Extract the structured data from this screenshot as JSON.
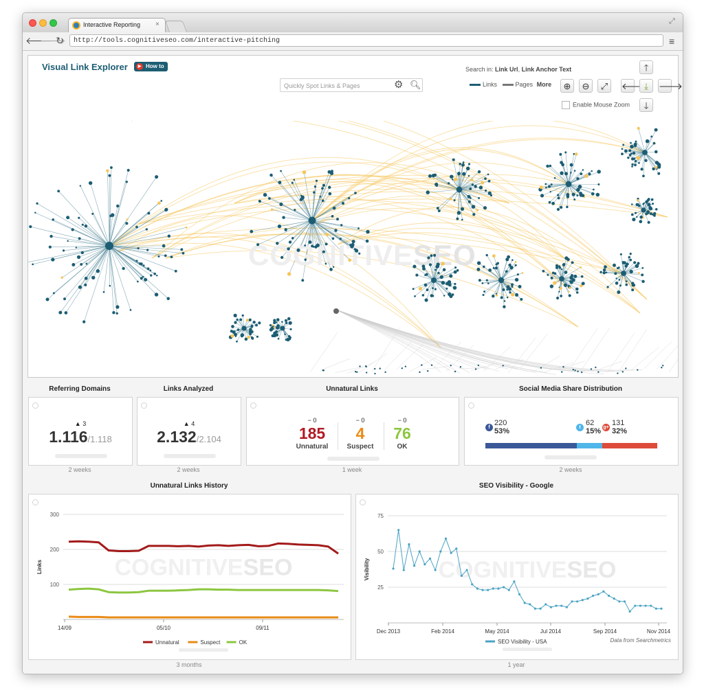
{
  "browser": {
    "tab_title": "Interactive Reporting",
    "url": "http://tools.cognitiveseo.com/interactive-pitching"
  },
  "explorer": {
    "title": "Visual Link Explorer",
    "howto_label": "How to",
    "search_placeholder": "Quickly Spot Links & Pages",
    "search_in_label": "Search in:",
    "search_in_url": "Link Url",
    "search_in_anchor": "Link Anchor Text",
    "legend_links": "Links",
    "legend_pages": "Pages",
    "legend_more": "More",
    "mouse_zoom_label": "Enable Mouse Zoom",
    "watermark_a": "COGNITIVE",
    "watermark_b": "SEO",
    "colors": {
      "links": "#1c5d73",
      "pages": "#777777",
      "yellow_links": "#f6c55a"
    }
  },
  "widgets": {
    "referring_domains": {
      "title": "Referring Domains",
      "delta": "3",
      "value": "1.116",
      "previous": "/1.118",
      "period": "2 weeks"
    },
    "links_analyzed": {
      "title": "Links Analyzed",
      "delta": "4",
      "value": "2.132",
      "previous": "/2.104",
      "period": "2 weeks"
    },
    "unnatural_links": {
      "title": "Unnatural Links",
      "period": "1 week",
      "items": [
        {
          "delta": "0",
          "value": "185",
          "label": "Unnatural",
          "color": "#b11b25"
        },
        {
          "delta": "0",
          "value": "4",
          "label": "Suspect",
          "color": "#e98b16"
        },
        {
          "delta": "0",
          "value": "76",
          "label": "OK",
          "color": "#8cc63f"
        }
      ]
    },
    "social_share": {
      "title": "Social Media Share Distribution",
      "period": "2 weeks",
      "items": [
        {
          "icon": "facebook-icon",
          "count": "220",
          "percent": "53%",
          "share": 53,
          "color": "#3b5998"
        },
        {
          "icon": "twitter-icon",
          "count": "62",
          "percent": "15%",
          "share": 15,
          "color": "#4fb6e8"
        },
        {
          "icon": "google-plus-icon",
          "count": "131",
          "percent": "32%",
          "share": 32,
          "color": "#dd4b39"
        }
      ]
    }
  },
  "chart_data": [
    {
      "type": "line",
      "title": "Unnatural Links History",
      "ylabel": "Links",
      "xlabel": "",
      "ylim": [
        0,
        300
      ],
      "yticks": [
        100,
        200,
        300
      ],
      "x_tick_labels": [
        "14/09",
        "05/10",
        "09/11"
      ],
      "period": "3 months",
      "legend_position": "bottom",
      "watermark_a": "COGNITIVE",
      "watermark_b": "SEO",
      "series": [
        {
          "name": "Unnatural",
          "color": "#a31a1a",
          "values": [
            222,
            223,
            222,
            220,
            197,
            195,
            195,
            196,
            210,
            210,
            210,
            209,
            210,
            208,
            211,
            212,
            210,
            212,
            213,
            209,
            210,
            217,
            216,
            214,
            213,
            212,
            208,
            188
          ]
        },
        {
          "name": "Suspect",
          "color": "#e98b16",
          "values": [
            8,
            7,
            7,
            7,
            6,
            6,
            6,
            6,
            6,
            6,
            6,
            6,
            6,
            6,
            6,
            6,
            6,
            6,
            6,
            6,
            6,
            6,
            6,
            6,
            6,
            6,
            6,
            6
          ]
        },
        {
          "name": "OK",
          "color": "#8cc63f",
          "values": [
            85,
            87,
            88,
            86,
            78,
            77,
            77,
            78,
            82,
            82,
            82,
            83,
            84,
            86,
            86,
            85,
            85,
            84,
            84,
            84,
            84,
            84,
            84,
            84,
            84,
            84,
            83,
            81
          ]
        }
      ]
    },
    {
      "type": "line",
      "title": "SEO Visibility - Google",
      "ylabel": "Visibility",
      "xlabel": "",
      "ylim": [
        0,
        75
      ],
      "yticks": [
        25,
        50,
        75
      ],
      "x_tick_labels": [
        "Dec 2013",
        "Feb 2014",
        "May 2014",
        "Jul 2014",
        "Sep 2014",
        "Nov 2014"
      ],
      "period": "1 year",
      "legend_position": "bottom",
      "note": "Data from Searchmetrics",
      "watermark_a": "COGNITIVE",
      "watermark_b": "SEO",
      "series": [
        {
          "name": "SEO Visibility - USA",
          "color": "#4aa3c4",
          "values": [
            38,
            65,
            37,
            55,
            40,
            50,
            41,
            45,
            37,
            50,
            59,
            49,
            52,
            33,
            37,
            27,
            24,
            23,
            23,
            24,
            24,
            25,
            23,
            29,
            20,
            14,
            13,
            10,
            10,
            13,
            11,
            12,
            12,
            11,
            15,
            15,
            16,
            17,
            19,
            20,
            22,
            19,
            17,
            15,
            15,
            8,
            12,
            12,
            12,
            12,
            10,
            10
          ]
        }
      ]
    }
  ]
}
